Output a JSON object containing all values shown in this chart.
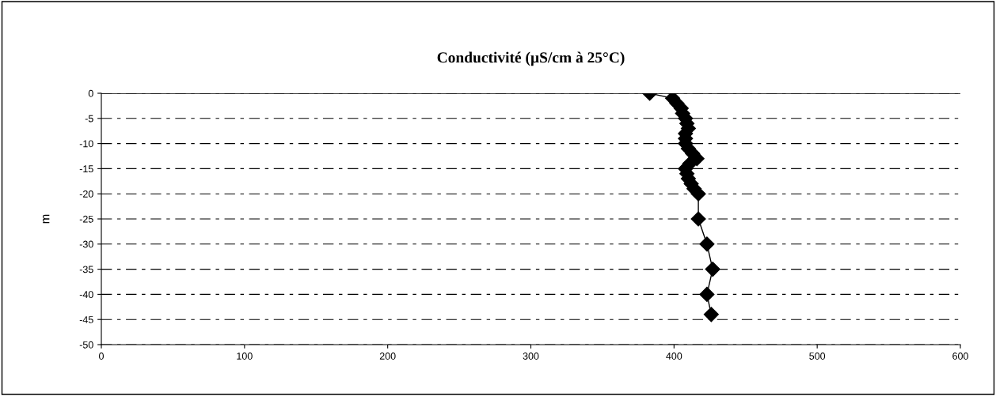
{
  "chart_data": {
    "type": "line",
    "title": "Conductivité (µS/cm à 25°C)",
    "ylabel": "m",
    "series": [
      {
        "color": "#000000",
        "x": [
          383,
          399,
          402,
          405,
          406,
          408,
          409,
          410,
          408,
          408,
          408,
          410,
          413,
          416,
          411,
          408,
          409,
          410,
          412,
          414,
          417,
          417,
          423,
          427,
          423,
          426
        ],
        "values": [
          0,
          -1,
          -2,
          -3,
          -4,
          -5,
          -6,
          -7,
          -8,
          -9,
          -10,
          -11,
          -12,
          -13,
          -14,
          -15,
          -16,
          -17,
          -18,
          -19,
          -20,
          -25,
          -30,
          -35,
          -40,
          -44
        ]
      }
    ],
    "xlim": [
      0,
      600
    ],
    "xticks": [
      0,
      100,
      200,
      300,
      400,
      500,
      600
    ],
    "ylim": [
      -50,
      0
    ],
    "yticks": [
      0,
      -5,
      -10,
      -15,
      -20,
      -25,
      -30,
      -35,
      -40,
      -45,
      -50
    ],
    "grid": "y",
    "marker": "diamond",
    "line_style": "solid",
    "legend": false
  }
}
